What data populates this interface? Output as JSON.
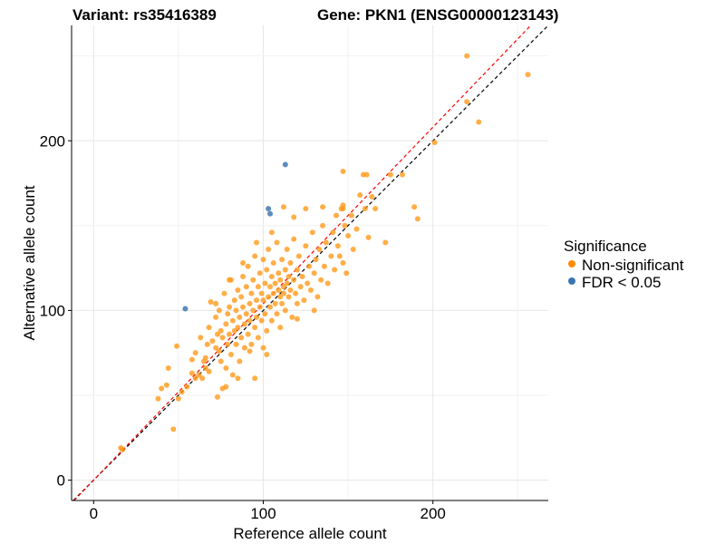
{
  "chart_data": {
    "type": "scatter",
    "title_left": "Variant: rs35416389",
    "title_right": "Gene: PKN1 (ENSG00000123143)",
    "xlabel": "Reference allele count",
    "ylabel": "Alternative allele count",
    "xlim": [
      -13,
      268
    ],
    "ylim": [
      -12,
      268
    ],
    "xticks": [
      0,
      100,
      200
    ],
    "yticks": [
      0,
      100,
      200
    ],
    "grid": true,
    "legend": {
      "title": "Significance",
      "placement": "right",
      "entries": [
        "Non-significant",
        "FDR < 0.05"
      ]
    },
    "reference_lines": [
      {
        "name": "y = x",
        "slope": 1.0,
        "intercept": 0,
        "color": "#000000",
        "style": "dashed"
      },
      {
        "name": "fitted",
        "slope": 1.04,
        "intercept": 0,
        "color": "#ff0000",
        "style": "dashed"
      }
    ],
    "series": [
      {
        "name": "Non-significant",
        "color": "#ff9a1a",
        "points": [
          [
            16,
            19
          ],
          [
            17,
            18
          ],
          [
            38,
            48
          ],
          [
            40,
            54
          ],
          [
            43,
            56
          ],
          [
            44,
            66
          ],
          [
            47,
            30
          ],
          [
            49,
            79
          ],
          [
            50,
            48
          ],
          [
            52,
            52
          ],
          [
            55,
            55
          ],
          [
            58,
            71
          ],
          [
            58,
            63
          ],
          [
            60,
            60
          ],
          [
            60,
            75
          ],
          [
            62,
            62
          ],
          [
            63,
            84
          ],
          [
            64,
            60
          ],
          [
            65,
            70
          ],
          [
            66,
            72
          ],
          [
            66,
            66
          ],
          [
            67,
            80
          ],
          [
            68,
            90
          ],
          [
            68,
            64
          ],
          [
            69,
            105
          ],
          [
            70,
            82
          ],
          [
            72,
            78
          ],
          [
            72,
            96
          ],
          [
            73,
            49
          ],
          [
            73,
            86
          ],
          [
            74,
            76
          ],
          [
            74,
            100
          ],
          [
            75,
            88
          ],
          [
            75,
            70
          ],
          [
            76,
            54
          ],
          [
            76,
            84
          ],
          [
            77,
            110
          ],
          [
            78,
            92
          ],
          [
            78,
            66
          ],
          [
            79,
            80
          ],
          [
            79,
            98
          ],
          [
            80,
            102
          ],
          [
            80,
            86
          ],
          [
            81,
            74
          ],
          [
            81,
            118
          ],
          [
            82,
            94
          ],
          [
            82,
            62
          ],
          [
            83,
            106
          ],
          [
            83,
            88
          ],
          [
            84,
            100
          ],
          [
            84,
            80
          ],
          [
            85,
            112
          ],
          [
            85,
            90
          ],
          [
            86,
            96
          ],
          [
            86,
            70
          ],
          [
            87,
            108
          ],
          [
            87,
            84
          ],
          [
            88,
            120
          ],
          [
            88,
            102
          ],
          [
            89,
            92
          ],
          [
            89,
            78
          ],
          [
            90,
            114
          ],
          [
            90,
            98
          ],
          [
            91,
            86
          ],
          [
            91,
            126
          ],
          [
            92,
            104
          ],
          [
            92,
            94
          ],
          [
            93,
            110
          ],
          [
            93,
            80
          ],
          [
            94,
            118
          ],
          [
            94,
            100
          ],
          [
            95,
            90
          ],
          [
            95,
            132
          ],
          [
            96,
            106
          ],
          [
            96,
            96
          ],
          [
            97,
            114
          ],
          [
            97,
            84
          ],
          [
            98,
            122
          ],
          [
            98,
            102
          ],
          [
            99,
            94
          ],
          [
            99,
            110
          ],
          [
            100,
            130
          ],
          [
            100,
            106
          ],
          [
            101,
            98
          ],
          [
            101,
            116
          ],
          [
            102,
            88
          ],
          [
            102,
            124
          ],
          [
            103,
            108
          ],
          [
            103,
            136
          ],
          [
            104,
            102
          ],
          [
            104,
            114
          ],
          [
            105,
            94
          ],
          [
            105,
            120
          ],
          [
            106,
            110
          ],
          [
            106,
            128
          ],
          [
            107,
            104
          ],
          [
            107,
            116
          ],
          [
            108,
            140
          ],
          [
            108,
            98
          ],
          [
            109,
            112
          ],
          [
            109,
            122
          ],
          [
            110,
            108
          ],
          [
            110,
            118
          ],
          [
            111,
            104
          ],
          [
            111,
            130
          ],
          [
            112,
            114
          ],
          [
            112,
            110
          ],
          [
            113,
            124
          ],
          [
            113,
            100
          ],
          [
            114,
            116
          ],
          [
            114,
            136
          ],
          [
            115,
            108
          ],
          [
            115,
            120
          ],
          [
            116,
            112
          ],
          [
            116,
            128
          ],
          [
            117,
            96
          ],
          [
            118,
            118
          ],
          [
            118,
            142
          ],
          [
            119,
            110
          ],
          [
            120,
            124
          ],
          [
            120,
            104
          ],
          [
            121,
            132
          ],
          [
            122,
            114
          ],
          [
            123,
            120
          ],
          [
            124,
            106
          ],
          [
            125,
            138
          ],
          [
            126,
            116
          ],
          [
            127,
            126
          ],
          [
            128,
            112
          ],
          [
            129,
            146
          ],
          [
            130,
            122
          ],
          [
            131,
            130
          ],
          [
            132,
            108
          ],
          [
            133,
            136
          ],
          [
            134,
            118
          ],
          [
            135,
            150
          ],
          [
            136,
            126
          ],
          [
            137,
            140
          ],
          [
            138,
            116
          ],
          [
            140,
            132
          ],
          [
            141,
            146
          ],
          [
            142,
            124
          ],
          [
            143,
            156
          ],
          [
            144,
            138
          ],
          [
            145,
            132
          ],
          [
            146,
            160
          ],
          [
            147,
            128
          ],
          [
            148,
            150
          ],
          [
            149,
            122
          ],
          [
            150,
            144
          ],
          [
            152,
            156
          ],
          [
            153,
            136
          ],
          [
            155,
            148
          ],
          [
            157,
            168
          ],
          [
            160,
            160
          ],
          [
            162,
            143
          ],
          [
            164,
            167
          ],
          [
            172,
            140
          ],
          [
            112,
            161
          ],
          [
            135,
            161
          ],
          [
            147,
            162
          ],
          [
            147,
            160
          ],
          [
            166,
            160
          ],
          [
            159,
            180
          ],
          [
            161,
            180
          ],
          [
            147,
            182
          ],
          [
            175,
            180
          ],
          [
            182,
            180
          ],
          [
            189,
            161
          ],
          [
            191,
            154
          ],
          [
            201,
            199
          ],
          [
            220,
            250
          ],
          [
            220,
            223
          ],
          [
            227,
            211
          ],
          [
            256,
            239
          ],
          [
            95,
            60
          ],
          [
            85,
            60
          ],
          [
            78,
            55
          ],
          [
            92,
            76
          ],
          [
            120,
            95
          ],
          [
            110,
            90
          ],
          [
            130,
            100
          ],
          [
            100,
            78
          ],
          [
            102,
            74
          ],
          [
            80,
            118
          ],
          [
            72,
            104
          ],
          [
            88,
            128
          ],
          [
            96,
            140
          ],
          [
            105,
            146
          ],
          [
            118,
            155
          ],
          [
            125,
            160
          ]
        ]
      },
      {
        "name": "FDR < 0.05",
        "color": "#4a7fb5",
        "points": [
          [
            54,
            101
          ],
          [
            103,
            160
          ],
          [
            104,
            157
          ],
          [
            113,
            186
          ]
        ]
      }
    ]
  }
}
